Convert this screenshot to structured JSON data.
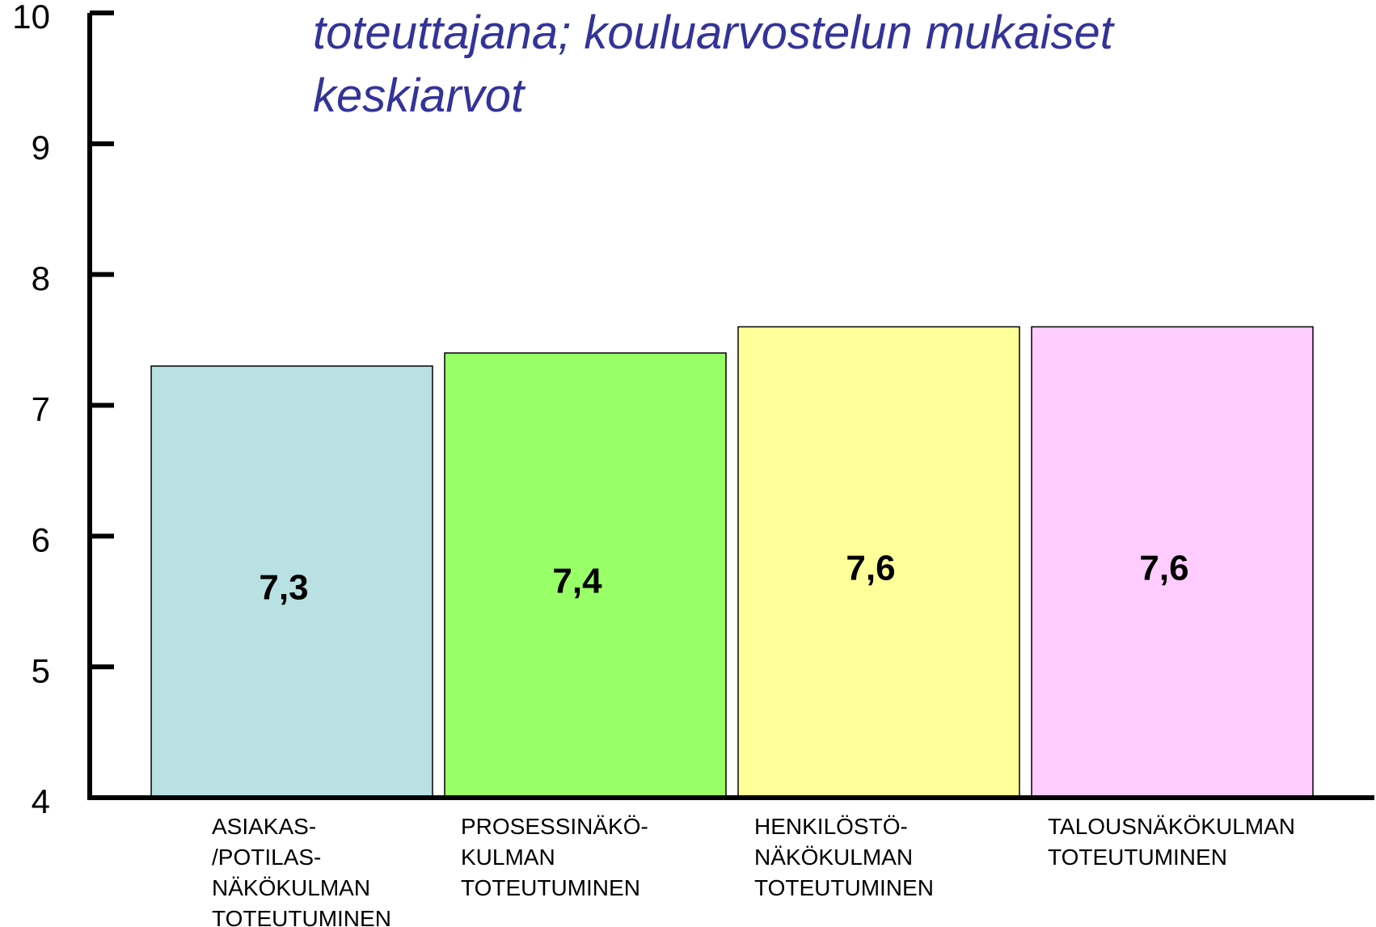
{
  "chart_data": {
    "type": "bar",
    "title_lines": [
      "toteuttajana; kouluarvostelun mukaiset",
      "keskiarvot"
    ],
    "categories": [
      [
        "ASIAKAS-",
        "/POTILAS-",
        "NÄKÖKULMAN",
        "TOTEUTUMINEN"
      ],
      [
        "PROSESSINÄKÖ-",
        "KULMAN",
        "TOTEUTUMINEN"
      ],
      [
        "HENKILÖSTÖ-",
        "NÄKÖKULMAN",
        "TOTEUTUMINEN"
      ],
      [
        "TALOUSNÄKÖKULMAN",
        "TOTEUTUMINEN"
      ]
    ],
    "values": [
      7.3,
      7.4,
      7.6,
      7.6
    ],
    "value_labels": [
      "7,3",
      "7,4",
      "7,6",
      "7,6"
    ],
    "colors": [
      "#b9e0e3",
      "#99ff66",
      "#ffff99",
      "#ffccff"
    ],
    "ylim": [
      4,
      10
    ],
    "yticks": [
      4,
      5,
      6,
      7,
      8,
      9,
      10
    ]
  }
}
